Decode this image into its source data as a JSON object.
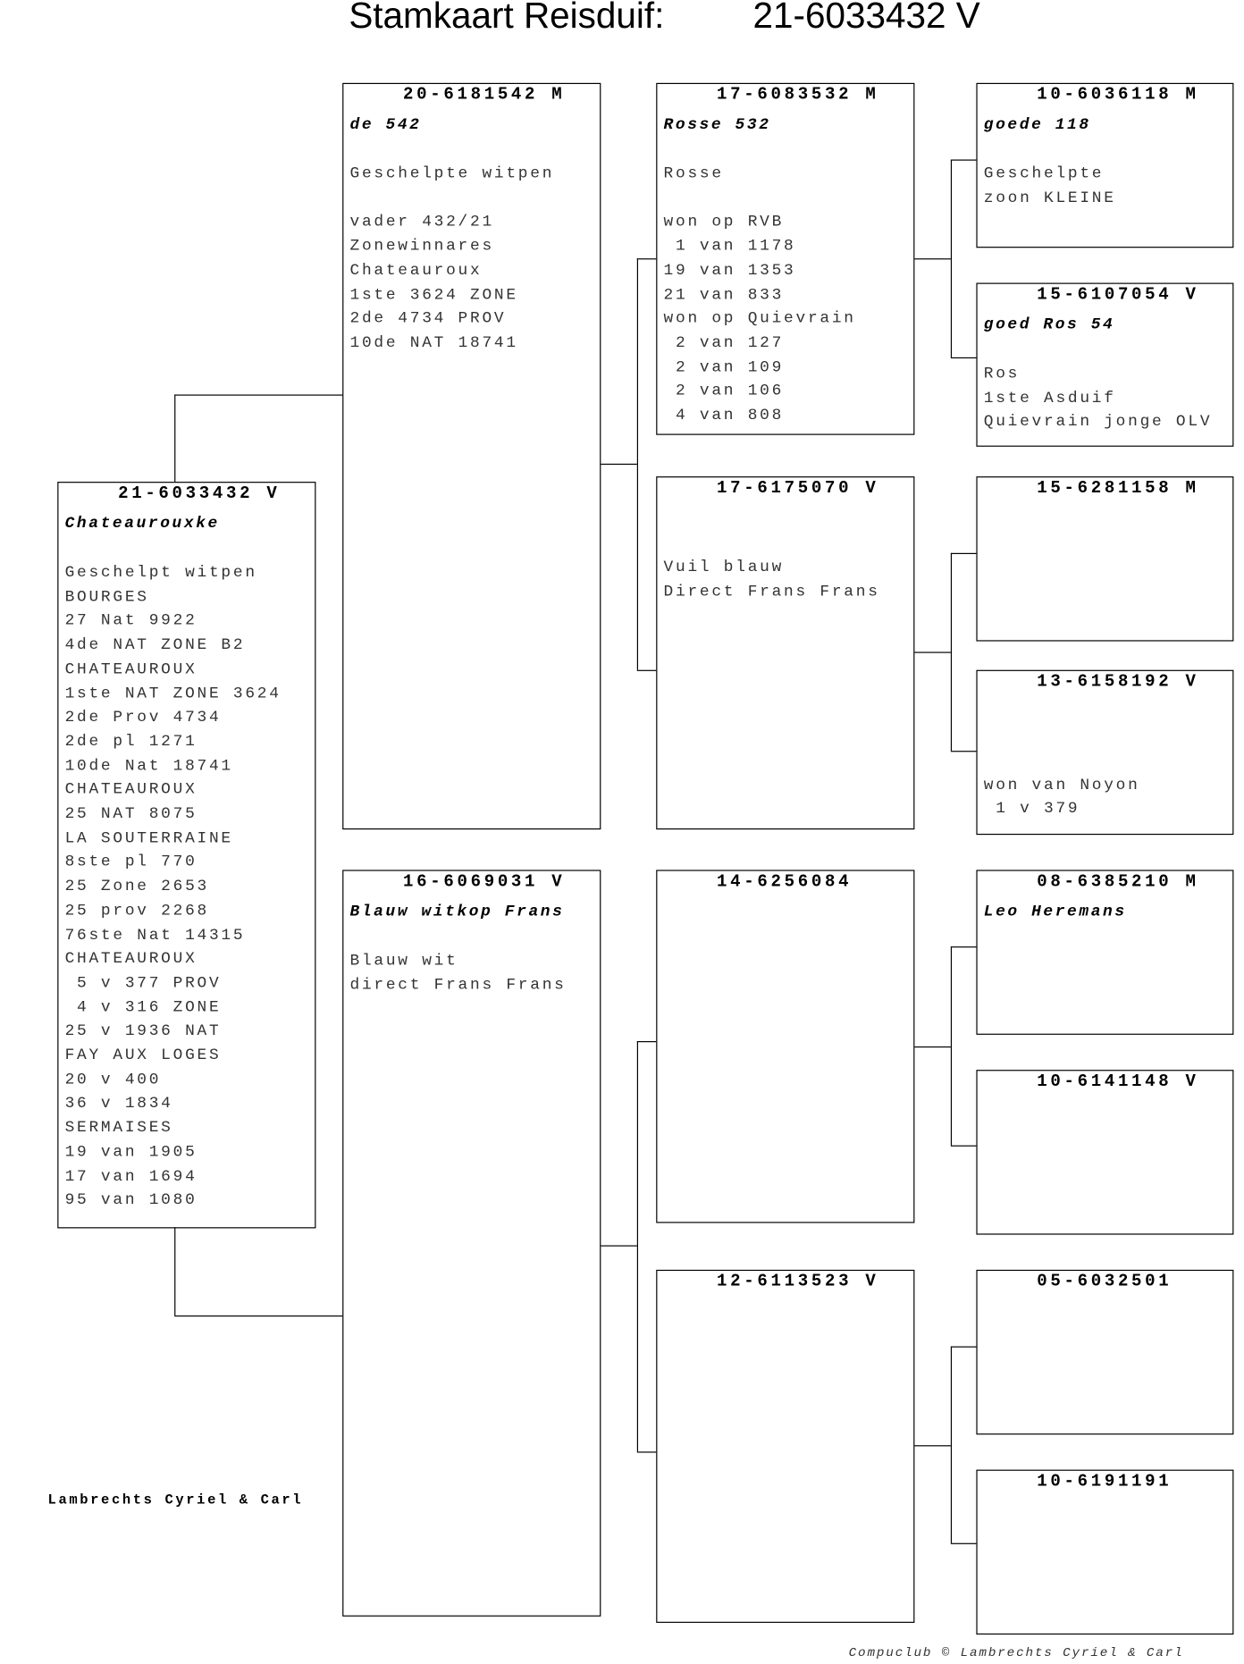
{
  "title": {
    "label": "Stamkaart Reisduif:",
    "ring": "21-6033432 V"
  },
  "pedigree": {
    "subject": {
      "ring": "21-6033432 V",
      "name": "Chateaurouxke",
      "lines": [
        "Geschelpt witpen",
        "BOURGES",
        "27 Nat 9922",
        "4de NAT ZONE B2",
        "CHATEAUROUX",
        "1ste NAT ZONE 3624",
        "2de Prov 4734",
        "2de pl 1271",
        "10de Nat 18741",
        "CHATEAUROUX",
        "25 NAT 8075",
        "LA SOUTERRAINE",
        "8ste pl 770",
        "25 Zone 2653",
        "25 prov 2268",
        "76ste Nat 14315",
        "CHATEAUROUX",
        " 5 v 377 PROV",
        " 4 v 316 ZONE",
        "25 v 1936 NAT",
        "FAY AUX LOGES",
        "20 v 400",
        "36 v 1834",
        "SERMAISES",
        "19 van 1905",
        "17 van 1694",
        "95 van 1080"
      ]
    },
    "sire": {
      "ring": "20-6181542 M",
      "name": "de 542",
      "lines": [
        "Geschelpte witpen",
        "",
        "vader 432/21",
        "Zonewinnares",
        "Chateauroux",
        "1ste 3624 ZONE",
        "2de 4734 PROV",
        "10de NAT 18741"
      ]
    },
    "dam": {
      "ring": "16-6069031 V",
      "name": "Blauw witkop Frans",
      "lines": [
        "Blauw wit",
        "direct Frans Frans"
      ]
    },
    "sire_sire": {
      "ring": "17-6083532 M",
      "name": "Rosse 532",
      "lines": [
        "Rosse",
        "",
        "won op RVB",
        " 1 van 1178",
        "19 van 1353",
        "21 van 833",
        "won op Quievrain",
        " 2 van 127",
        " 2 van 109",
        " 2 van 106",
        " 4 van 808"
      ]
    },
    "sire_dam": {
      "ring": "17-6175070 V",
      "name": "",
      "lines": [
        "Vuil blauw",
        "Direct Frans Frans"
      ]
    },
    "dam_sire": {
      "ring": "14-6256084",
      "name": "",
      "lines": []
    },
    "dam_dam": {
      "ring": "12-6113523 V",
      "name": "",
      "lines": []
    },
    "sss": {
      "ring": "10-6036118 M",
      "name": "goede 118",
      "lines": [
        "Geschelpte",
        "zoon KLEINE"
      ]
    },
    "ssd": {
      "ring": "15-6107054 V",
      "name": "goed Ros 54",
      "lines": [
        "Ros",
        "1ste Asduif",
        "Quievrain jonge OLV"
      ]
    },
    "sds": {
      "ring": "15-6281158 M",
      "name": "",
      "lines": []
    },
    "sdd": {
      "ring": "13-6158192 V",
      "name": "",
      "lines": [
        "won van Noyon",
        " 1 v 379"
      ]
    },
    "dss": {
      "ring": "08-6385210 M",
      "name": "Leo Heremans",
      "lines": []
    },
    "dsd": {
      "ring": "10-6141148 V",
      "name": "",
      "lines": []
    },
    "dds": {
      "ring": "05-6032501",
      "name": "",
      "lines": []
    },
    "ddd": {
      "ring": "10-6191191",
      "name": "",
      "lines": []
    }
  },
  "footer": {
    "owner": "Lambrechts Cyriel & Carl",
    "copyright": "Compuclub © Lambrechts Cyriel & Carl"
  }
}
